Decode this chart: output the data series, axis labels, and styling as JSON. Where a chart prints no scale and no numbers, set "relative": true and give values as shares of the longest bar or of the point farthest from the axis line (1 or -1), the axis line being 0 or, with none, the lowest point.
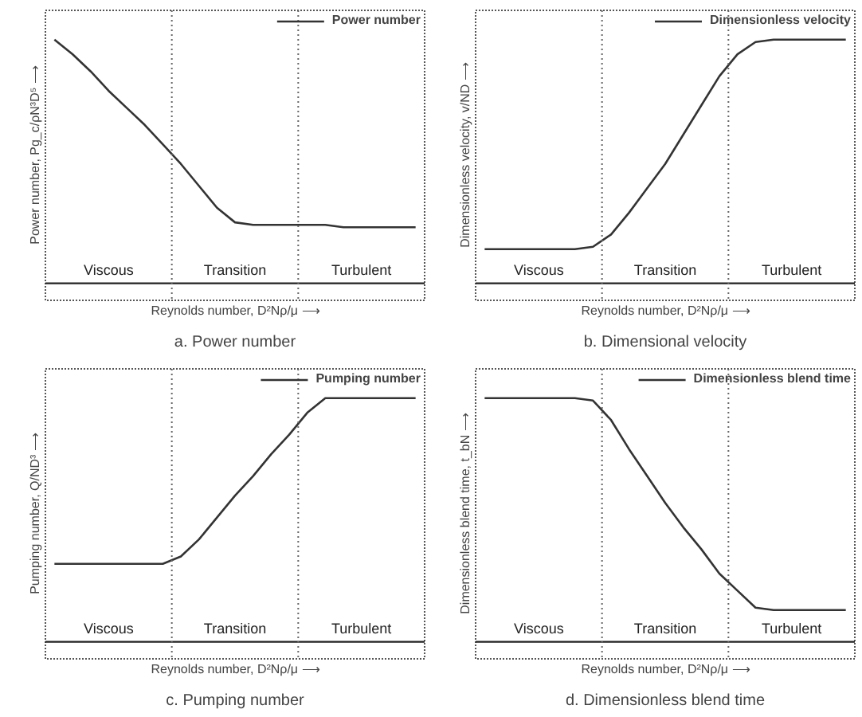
{
  "chart_data": [
    {
      "type": "line",
      "relative": true,
      "title": "a. Power number",
      "xlabel": "Reynolds number, D²Nρ/μ ⟶",
      "ylabel": "Power number, Pg_c/ρN³D⁵ ⟶",
      "legend": "top right",
      "categories": [
        null,
        null,
        null,
        null,
        null,
        null,
        null,
        null,
        null,
        null,
        null,
        null,
        null,
        null,
        null,
        null,
        null,
        null,
        null,
        null,
        null
      ],
      "series": [
        {
          "name": "Power number",
          "color": "#333333",
          "values": [
            1,
            0.94,
            0.87,
            0.79,
            0.72,
            0.65,
            0.57,
            0.49,
            0.4,
            0.31,
            0.25,
            0.24,
            0.24,
            0.24,
            0.24,
            0.24,
            0.23,
            0.23,
            0.23,
            0.23,
            0.23
          ]
        }
      ],
      "annotations": [
        "Viscous",
        "Transition",
        "Turbulent"
      ]
    },
    {
      "type": "line",
      "relative": true,
      "title": "b. Dimensional velocity",
      "xlabel": "Reynolds number, D²Nρ/μ ⟶",
      "ylabel": "Dimensionless velocity, v/ND ⟶",
      "legend": "top right",
      "categories": [
        null,
        null,
        null,
        null,
        null,
        null,
        null,
        null,
        null,
        null,
        null,
        null,
        null,
        null,
        null,
        null,
        null,
        null,
        null,
        null,
        null
      ],
      "series": [
        {
          "name": "Dimensionless velocity",
          "color": "#333333",
          "values": [
            0.14,
            0.14,
            0.14,
            0.14,
            0.14,
            0.14,
            0.15,
            0.2,
            0.29,
            0.39,
            0.49,
            0.61,
            0.73,
            0.85,
            0.94,
            0.99,
            1,
            1,
            1,
            1,
            1
          ]
        }
      ],
      "annotations": [
        "Viscous",
        "Transition",
        "Turbulent"
      ]
    },
    {
      "type": "line",
      "relative": true,
      "title": "c. Pumping number",
      "xlabel": "Reynolds number, D²Nρ/μ ⟶",
      "ylabel": "Pumping number, Q/ND³ ⟶",
      "legend": "top right",
      "categories": [
        null,
        null,
        null,
        null,
        null,
        null,
        null,
        null,
        null,
        null,
        null,
        null,
        null,
        null,
        null,
        null,
        null,
        null,
        null,
        null,
        null
      ],
      "series": [
        {
          "name": "Pumping number",
          "color": "#333333",
          "values": [
            0.32,
            0.32,
            0.32,
            0.32,
            0.32,
            0.32,
            0.32,
            0.35,
            0.42,
            0.51,
            0.6,
            0.68,
            0.77,
            0.85,
            0.94,
            1,
            1,
            1,
            1,
            1,
            1
          ]
        }
      ],
      "annotations": [
        "Viscous",
        "Transition",
        "Turbulent"
      ]
    },
    {
      "type": "line",
      "relative": true,
      "title": "d. Dimensionless blend time",
      "xlabel": "Reynolds number, D²Nρ/μ ⟶",
      "ylabel": "Dimensionless blend time, t_bN ⟶",
      "legend": "top right",
      "categories": [
        null,
        null,
        null,
        null,
        null,
        null,
        null,
        null,
        null,
        null,
        null,
        null,
        null,
        null,
        null,
        null,
        null,
        null,
        null,
        null,
        null
      ],
      "series": [
        {
          "name": "Dimensionless blend time",
          "color": "#333333",
          "values": [
            1,
            1,
            1,
            1,
            1,
            1,
            0.99,
            0.91,
            0.79,
            0.68,
            0.57,
            0.47,
            0.38,
            0.28,
            0.21,
            0.14,
            0.13,
            0.13,
            0.13,
            0.13,
            0.13
          ]
        }
      ],
      "annotations": [
        "Viscous",
        "Transition",
        "Turbulent"
      ]
    }
  ]
}
